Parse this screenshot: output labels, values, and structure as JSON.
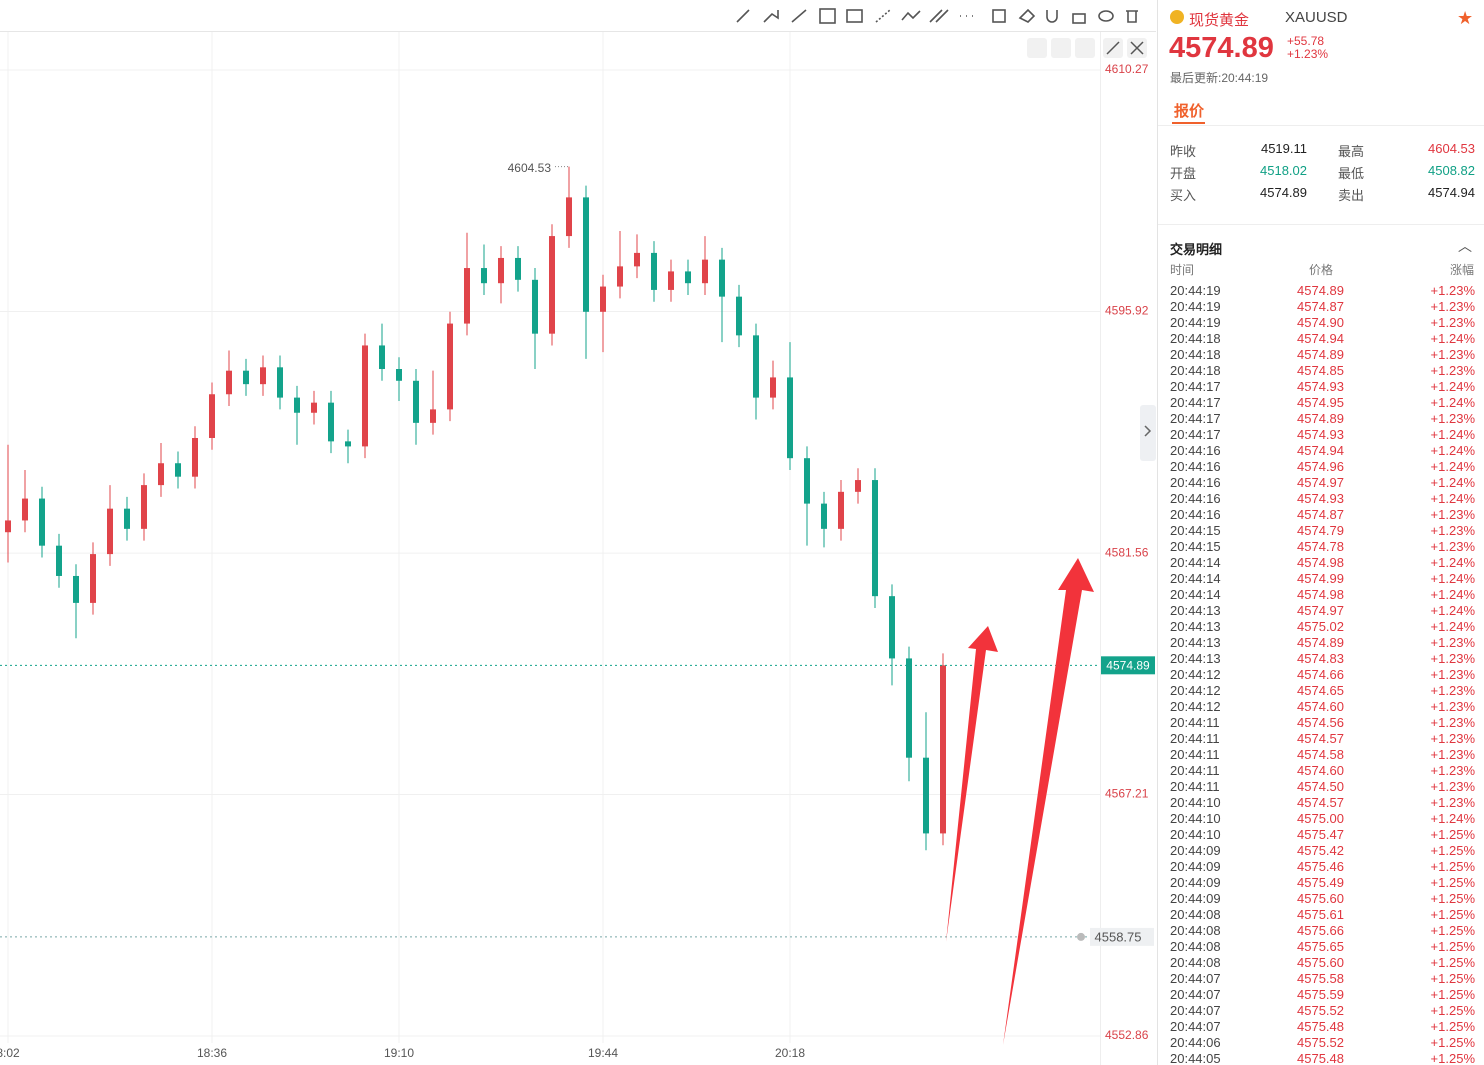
{
  "chart_data": {
    "type": "candlestick",
    "categories": [
      "8:02",
      null,
      null,
      null,
      null,
      null,
      null,
      null,
      null,
      null,
      null,
      null,
      "18:36",
      null,
      null,
      null,
      null,
      null,
      null,
      null,
      null,
      null,
      null,
      "19:10",
      null,
      null,
      null,
      null,
      null,
      null,
      null,
      null,
      null,
      null,
      null,
      "19:44",
      null,
      null,
      null,
      null,
      null,
      null,
      null,
      null,
      null,
      null,
      "20:18",
      null,
      null,
      null,
      null,
      null,
      null,
      null,
      null,
      null
    ],
    "open": [
      4582.8,
      4583.5,
      4584.8,
      4582.0,
      4580.2,
      4578.6,
      4581.5,
      4584.2,
      4583.0,
      4585.6,
      4586.9,
      4586.1,
      4588.4,
      4591.0,
      4592.4,
      4591.6,
      4592.6,
      4590.8,
      4589.9,
      4590.5,
      4588.2,
      4587.9,
      4593.9,
      4592.5,
      4591.8,
      4589.3,
      4590.1,
      4595.2,
      4598.5,
      4597.6,
      4599.1,
      4597.8,
      4594.6,
      4600.4,
      4602.7,
      4595.9,
      4597.4,
      4598.6,
      4599.4,
      4597.2,
      4598.3,
      4597.6,
      4599.0,
      4596.8,
      4594.5,
      4590.8,
      4592.0,
      4587.2,
      4584.5,
      4583.0,
      4585.2,
      4585.9,
      4579.0,
      4575.3,
      4569.4,
      4564.9
    ],
    "high": [
      4588.0,
      4586.5,
      4585.5,
      4582.7,
      4580.9,
      4582.2,
      4585.6,
      4584.9,
      4586.3,
      4588.1,
      4587.6,
      4589.1,
      4591.7,
      4593.6,
      4593.1,
      4593.3,
      4593.3,
      4591.5,
      4591.2,
      4591.2,
      4588.9,
      4594.6,
      4595.2,
      4593.2,
      4592.5,
      4592.4,
      4595.9,
      4600.6,
      4599.9,
      4599.8,
      4599.8,
      4598.5,
      4601.1,
      4604.53,
      4603.4,
      4598.1,
      4600.7,
      4600.5,
      4600.1,
      4599.0,
      4599.0,
      4600.4,
      4599.7,
      4597.5,
      4595.2,
      4593.0,
      4594.1,
      4587.9,
      4585.2,
      4585.9,
      4586.6,
      4586.6,
      4579.7,
      4576.0,
      4572.1,
      4575.6
    ],
    "low": [
      4581.0,
      4582.8,
      4581.3,
      4579.5,
      4576.5,
      4577.9,
      4580.8,
      4582.3,
      4582.3,
      4584.9,
      4585.4,
      4585.4,
      4587.7,
      4590.3,
      4590.9,
      4590.9,
      4590.1,
      4588.0,
      4589.2,
      4587.5,
      4586.9,
      4587.2,
      4591.8,
      4590.6,
      4588.0,
      4588.6,
      4589.4,
      4594.5,
      4596.9,
      4596.4,
      4597.1,
      4592.5,
      4593.9,
      4599.7,
      4593.1,
      4593.5,
      4596.7,
      4597.9,
      4596.5,
      4596.5,
      4596.9,
      4596.9,
      4594.1,
      4593.8,
      4589.5,
      4590.1,
      4586.5,
      4582.0,
      4581.9,
      4582.3,
      4584.5,
      4578.3,
      4573.7,
      4568.0,
      4563.9,
      4564.2
    ],
    "close": [
      4583.5,
      4584.8,
      4582.0,
      4580.2,
      4578.6,
      4581.5,
      4584.2,
      4583.0,
      4585.6,
      4586.9,
      4586.1,
      4588.4,
      4591.0,
      4592.4,
      4591.6,
      4592.6,
      4590.8,
      4589.9,
      4590.5,
      4588.2,
      4587.9,
      4593.9,
      4592.5,
      4591.8,
      4589.3,
      4590.1,
      4595.2,
      4598.5,
      4597.6,
      4599.1,
      4597.8,
      4594.6,
      4600.4,
      4602.7,
      4595.9,
      4597.4,
      4598.6,
      4599.4,
      4597.2,
      4598.3,
      4597.6,
      4599.0,
      4596.8,
      4594.5,
      4590.8,
      4592.0,
      4587.2,
      4584.5,
      4583.0,
      4585.2,
      4585.9,
      4579.0,
      4575.3,
      4569.4,
      4564.9,
      4574.89
    ],
    "up_color": "#e0444a",
    "down_color": "#13a38b",
    "ylim": [
      4552.86,
      4610.27
    ],
    "yticks": [
      4552.86,
      4567.21,
      4581.56,
      4595.92,
      4610.27
    ],
    "grid": true,
    "last_price": 4574.89,
    "alert_price": 4558.75
  },
  "quote": {
    "name": "现货黄金",
    "symbol": "XAUUSD",
    "price": "4574.89",
    "change": "+55.78",
    "change_pct": "+1.23%",
    "updated": "最后更新:20:44:19",
    "tab": "报价",
    "stats": [
      [
        "昨收",
        "4519.11",
        "最高",
        "4604.53"
      ],
      [
        "开盘",
        "4518.02",
        "最低",
        "4508.82"
      ],
      [
        "买入",
        "4574.89",
        "卖出",
        "4574.94"
      ]
    ],
    "trades": {
      "title": "交易明细",
      "columns": [
        "时间",
        "价格",
        "涨幅"
      ],
      "rows": [
        [
          "20:44:19",
          "4574.89",
          "+1.23%"
        ],
        [
          "20:44:19",
          "4574.87",
          "+1.23%"
        ],
        [
          "20:44:19",
          "4574.90",
          "+1.23%"
        ],
        [
          "20:44:18",
          "4574.94",
          "+1.24%"
        ],
        [
          "20:44:18",
          "4574.89",
          "+1.23%"
        ],
        [
          "20:44:18",
          "4574.85",
          "+1.23%"
        ],
        [
          "20:44:17",
          "4574.93",
          "+1.24%"
        ],
        [
          "20:44:17",
          "4574.95",
          "+1.24%"
        ],
        [
          "20:44:17",
          "4574.89",
          "+1.23%"
        ],
        [
          "20:44:17",
          "4574.93",
          "+1.24%"
        ],
        [
          "20:44:16",
          "4574.94",
          "+1.24%"
        ],
        [
          "20:44:16",
          "4574.96",
          "+1.24%"
        ],
        [
          "20:44:16",
          "4574.97",
          "+1.24%"
        ],
        [
          "20:44:16",
          "4574.93",
          "+1.24%"
        ],
        [
          "20:44:16",
          "4574.87",
          "+1.23%"
        ],
        [
          "20:44:15",
          "4574.79",
          "+1.23%"
        ],
        [
          "20:44:15",
          "4574.78",
          "+1.23%"
        ],
        [
          "20:44:14",
          "4574.98",
          "+1.24%"
        ],
        [
          "20:44:14",
          "4574.99",
          "+1.24%"
        ],
        [
          "20:44:14",
          "4574.98",
          "+1.24%"
        ],
        [
          "20:44:13",
          "4574.97",
          "+1.24%"
        ],
        [
          "20:44:13",
          "4575.02",
          "+1.24%"
        ],
        [
          "20:44:13",
          "4574.89",
          "+1.23%"
        ],
        [
          "20:44:13",
          "4574.83",
          "+1.23%"
        ],
        [
          "20:44:12",
          "4574.66",
          "+1.23%"
        ],
        [
          "20:44:12",
          "4574.65",
          "+1.23%"
        ],
        [
          "20:44:12",
          "4574.60",
          "+1.23%"
        ],
        [
          "20:44:11",
          "4574.56",
          "+1.23%"
        ],
        [
          "20:44:11",
          "4574.57",
          "+1.23%"
        ],
        [
          "20:44:11",
          "4574.58",
          "+1.23%"
        ],
        [
          "20:44:11",
          "4574.60",
          "+1.23%"
        ],
        [
          "20:44:11",
          "4574.50",
          "+1.23%"
        ],
        [
          "20:44:10",
          "4574.57",
          "+1.23%"
        ],
        [
          "20:44:10",
          "4575.00",
          "+1.24%"
        ],
        [
          "20:44:10",
          "4575.47",
          "+1.25%"
        ],
        [
          "20:44:09",
          "4575.42",
          "+1.25%"
        ],
        [
          "20:44:09",
          "4575.46",
          "+1.25%"
        ],
        [
          "20:44:09",
          "4575.49",
          "+1.25%"
        ],
        [
          "20:44:09",
          "4575.60",
          "+1.25%"
        ],
        [
          "20:44:08",
          "4575.61",
          "+1.25%"
        ],
        [
          "20:44:08",
          "4575.66",
          "+1.25%"
        ],
        [
          "20:44:08",
          "4575.65",
          "+1.25%"
        ],
        [
          "20:44:08",
          "4575.60",
          "+1.25%"
        ],
        [
          "20:44:07",
          "4575.58",
          "+1.25%"
        ],
        [
          "20:44:07",
          "4575.59",
          "+1.25%"
        ],
        [
          "20:44:07",
          "4575.52",
          "+1.25%"
        ],
        [
          "20:44:07",
          "4575.48",
          "+1.25%"
        ],
        [
          "20:44:06",
          "4575.52",
          "+1.25%"
        ],
        [
          "20:44:05",
          "4575.48",
          "+1.25%"
        ]
      ]
    }
  }
}
